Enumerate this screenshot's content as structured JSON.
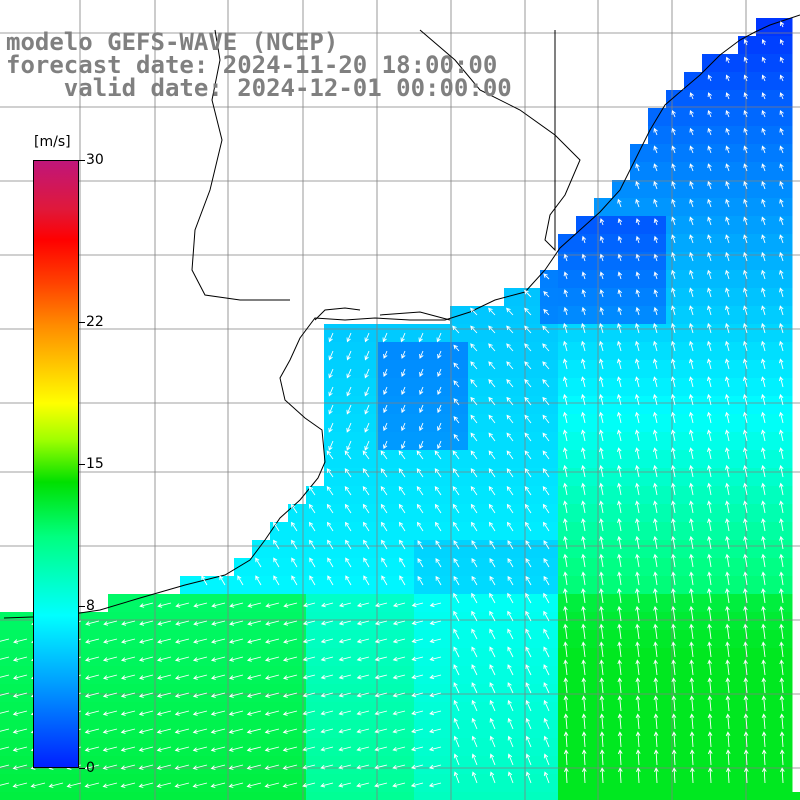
{
  "header": {
    "line1": "modelo GEFS-WAVE (NCEP)",
    "line2": "forecast date: 2024-11-20 18:00:00",
    "line3": "    valid date: 2024-12-01 00:00:00"
  },
  "colorbar": {
    "unit": "[m/s]",
    "min": 0,
    "max": 30,
    "ticks": [
      {
        "value": 30,
        "label": "30"
      },
      {
        "value": 22,
        "label": "22"
      },
      {
        "value": 15,
        "label": "15"
      },
      {
        "value": 8,
        "label": "8"
      },
      {
        "value": 0,
        "label": "0"
      }
    ]
  },
  "colors": {
    "land": "#ffffff",
    "grid": "#808080",
    "coast": "#000000",
    "arrow": "#ffffff",
    "speed_low": "#0020ff",
    "speed_mid": "#00ffff",
    "speed_high": "#00e000"
  },
  "map": {
    "field": "wind speed and direction",
    "region": "southern Brazil / Uruguay coast, South Atlantic",
    "grid_lines": "on"
  }
}
